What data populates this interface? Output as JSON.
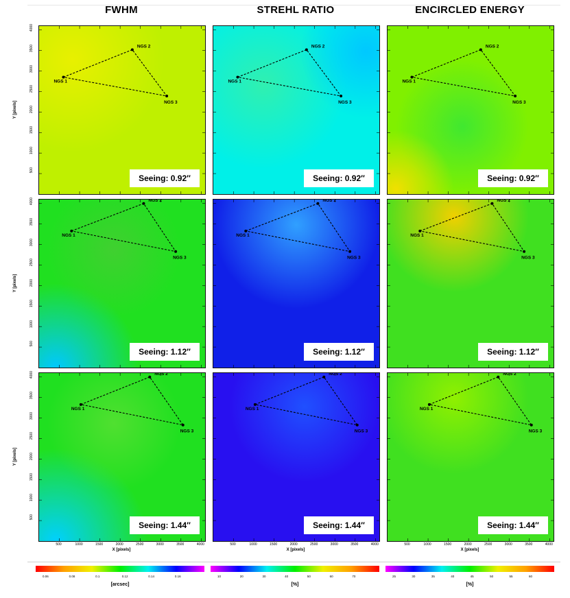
{
  "columns": [
    {
      "title": "FWHM",
      "colorbar": {
        "label": "[arcsec]",
        "ticks": [
          "0.06",
          "0.08",
          "0.1",
          "0.12",
          "0.14",
          "0.16"
        ]
      }
    },
    {
      "title": "STREHL RATIO",
      "colorbar": {
        "label": "[%]",
        "ticks": [
          "10",
          "20",
          "30",
          "40",
          "50",
          "60",
          "70"
        ]
      }
    },
    {
      "title": "ENCIRCLED ENERGY",
      "colorbar": {
        "label": "[%]",
        "ticks": [
          "25",
          "30",
          "35",
          "40",
          "45",
          "50",
          "55",
          "60"
        ]
      }
    }
  ],
  "rows": [
    {
      "seeing": "Seeing: 0.92″"
    },
    {
      "seeing": "Seeing: 1.12″"
    },
    {
      "seeing": "Seeing: 1.44″"
    }
  ],
  "axes": {
    "ylabel": "Y [pixels]",
    "xlabel": "X [pixels]",
    "y_ticks": [
      "500",
      "1000",
      "1500",
      "2000",
      "2500",
      "3000",
      "3500",
      "4000"
    ],
    "x_ticks": [
      "500",
      "1000",
      "1500",
      "2000",
      "2500",
      "3000",
      "3500",
      "4000"
    ]
  },
  "chart_data": {
    "type": "heatmap",
    "description_axes": {
      "x_range": [
        0,
        4096
      ],
      "y_range": [
        0,
        4096
      ]
    },
    "stars": [
      {
        "label": "NGS 1",
        "rows": [
          [
            600,
            2850
          ],
          [
            800,
            3330
          ],
          [
            1030,
            3330
          ]
        ]
      },
      {
        "label": "NGS 2",
        "rows": [
          [
            2300,
            3520
          ],
          [
            2580,
            4000
          ],
          [
            2730,
            4000
          ]
        ]
      },
      {
        "label": "NGS 3",
        "rows": [
          [
            3150,
            2390
          ],
          [
            3370,
            2830
          ],
          [
            3550,
            2830
          ]
        ]
      }
    ],
    "maps": [
      {
        "row": 0,
        "col": 0,
        "base": "#bff000",
        "blobs": [
          [
            "#e8f000",
            0.2,
            0.2,
            0.55
          ]
        ]
      },
      {
        "row": 0,
        "col": 1,
        "base": "#00f0e8",
        "blobs": [
          [
            "#30f0b0",
            0.3,
            0.35,
            0.5
          ],
          [
            "#00c8ff",
            0.92,
            0.15,
            0.4
          ]
        ]
      },
      {
        "row": 0,
        "col": 2,
        "base": "#80f000",
        "blobs": [
          [
            "#40e830",
            0.45,
            0.6,
            0.4
          ],
          [
            "#f0e000",
            0.05,
            0.97,
            0.35
          ]
        ]
      },
      {
        "row": 1,
        "col": 0,
        "base": "#20e020",
        "blobs": [
          [
            "#00c8ff",
            0.1,
            1.0,
            0.5
          ],
          [
            "#40d030",
            0.45,
            0.3,
            0.4
          ]
        ]
      },
      {
        "row": 1,
        "col": 1,
        "base": "#1020e8",
        "blobs": [
          [
            "#30a0ff",
            0.5,
            0.15,
            0.5
          ]
        ]
      },
      {
        "row": 1,
        "col": 2,
        "base": "#40e020",
        "blobs": [
          [
            "#f0d000",
            0.4,
            0.1,
            0.45
          ]
        ]
      },
      {
        "row": 2,
        "col": 0,
        "base": "#20e020",
        "blobs": [
          [
            "#00d0ff",
            0.1,
            1.0,
            0.55
          ],
          [
            "#50e030",
            0.45,
            0.3,
            0.4
          ]
        ]
      },
      {
        "row": 2,
        "col": 1,
        "base": "#2810f0",
        "blobs": [
          [
            "#2050ff",
            0.55,
            0.2,
            0.45
          ]
        ]
      },
      {
        "row": 2,
        "col": 2,
        "base": "#40e020",
        "blobs": [
          [
            "#90f000",
            0.4,
            0.15,
            0.45
          ]
        ]
      }
    ],
    "colorbars": [
      {
        "stops": [
          "#ff0000",
          "#ffa000",
          "#f0f000",
          "#00f000",
          "#00f0f0",
          "#0000ff",
          "#ff00ff"
        ]
      },
      {
        "stops": [
          "#ff00ff",
          "#0000ff",
          "#00f0f0",
          "#00f000",
          "#f0f000",
          "#ffa000",
          "#ff0000"
        ]
      },
      {
        "stops": [
          "#ff00ff",
          "#0000ff",
          "#00f0f0",
          "#00f000",
          "#f0f000",
          "#ffa000",
          "#ff0000"
        ]
      }
    ]
  }
}
